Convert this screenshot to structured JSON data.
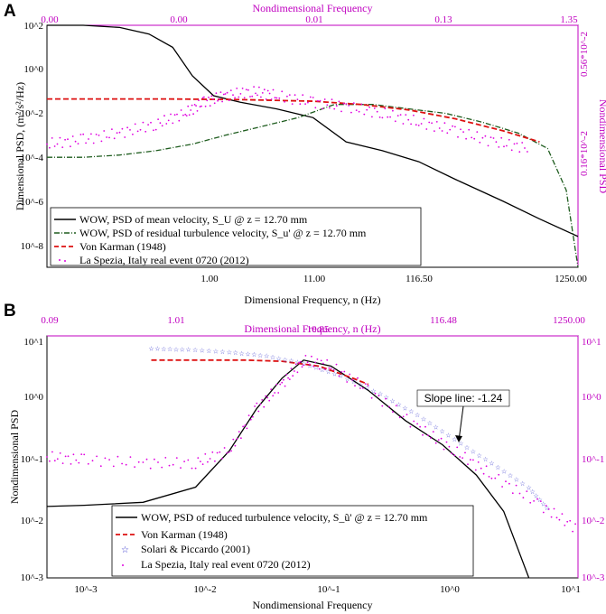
{
  "chart_data": [
    {
      "panel": "A",
      "type": "line",
      "xlabel": "Dimensional Frequency, n (Hz)",
      "ylabel": "Dimensional PSD, (m²/s²/Hz)",
      "top_label": "Nondimensional Frequency",
      "right_label": "Nondimensional PSD",
      "x_ticks": [
        "1.00",
        "11.00",
        "116.50",
        "1250.00"
      ],
      "top_ticks": [
        "0.00",
        "0.00",
        "0.01",
        "0.13",
        "1.35"
      ],
      "left_ticks": [
        "10^2",
        "10^0",
        "10^-2",
        "10^-4",
        "10^-6",
        "10^-8"
      ],
      "right_ticks": [
        "0.56*10^-2",
        "0.16*10^-2"
      ],
      "xlim": [
        0.05,
        1250
      ],
      "ylim_log10": [
        -9,
        2
      ],
      "legend": [
        "WOW, PSD of mean velocity, S_U @ z = 12.70 mm",
        "WOW, PSD of residual turbulence velocity, S_u' @ z = 12.70 mm",
        "Von Karman (1948)",
        "La Spezia, Italy real event 0720 (2012)"
      ],
      "series": [
        {
          "name": "WOW mean velocity PSD",
          "color": "#000000",
          "style": "solid",
          "x": [
            0.05,
            0.1,
            0.2,
            0.35,
            0.55,
            0.8,
            1.2,
            2,
            4,
            8,
            15,
            30,
            60,
            120,
            300,
            600,
            1250
          ],
          "y_log10": [
            2.0,
            2.0,
            1.9,
            1.6,
            1.0,
            -0.3,
            -1.2,
            -1.5,
            -1.8,
            -2.2,
            -3.3,
            -3.7,
            -4.2,
            -5.0,
            -6.0,
            -6.8,
            -7.6
          ]
        },
        {
          "name": "WOW residual turbulence PSD",
          "color": "#1e5c1e",
          "style": "dashdot",
          "x": [
            0.05,
            0.1,
            0.2,
            0.4,
            0.8,
            1.5,
            3,
            6,
            12,
            25,
            50,
            100,
            200,
            400,
            700,
            1000,
            1250
          ],
          "y_log10": [
            -4.0,
            -4.0,
            -3.9,
            -3.7,
            -3.4,
            -3.0,
            -2.6,
            -2.2,
            -1.6,
            -1.6,
            -1.8,
            -2.0,
            -2.4,
            -2.9,
            -3.6,
            -5.5,
            -9.0
          ]
        },
        {
          "name": "Von Karman (1948)",
          "color": "#dd1111",
          "style": "dashed",
          "x": [
            0.05,
            0.5,
            2,
            8,
            20,
            50,
            120,
            300,
            600
          ],
          "y_log10": [
            -1.35,
            -1.35,
            -1.38,
            -1.45,
            -1.6,
            -1.85,
            -2.25,
            -2.8,
            -3.3
          ]
        },
        {
          "name": "La Spezia real event",
          "color": "#e000e0",
          "style": "dots",
          "x": [
            0.05,
            0.1,
            0.2,
            0.4,
            0.7,
            1.0,
            1.5,
            2.5,
            4,
            8,
            15,
            30,
            60,
            120,
            250,
            500
          ],
          "y_log10": [
            -3.4,
            -3.2,
            -2.9,
            -2.5,
            -2.0,
            -1.5,
            -1.2,
            -1.0,
            -1.2,
            -1.5,
            -1.7,
            -2.0,
            -2.4,
            -2.8,
            -3.3,
            -3.6
          ]
        }
      ]
    },
    {
      "panel": "B",
      "type": "line",
      "xlabel": "Nondimensional Frequency",
      "ylabel": "Nondimensional PSD",
      "top_label": "Dimensional Frequency, n (Hz)",
      "x_ticks": [
        "10^-3",
        "10^-2",
        "10^-1",
        "10^0",
        "10^1"
      ],
      "top_ticks": [
        "0.09",
        "1.01",
        "10.85",
        "116.48",
        "1250.00"
      ],
      "left_ticks": [
        "10^1",
        "10^0",
        "10^-1",
        "10^-2",
        "10^-3"
      ],
      "right_ticks": [
        "10^1",
        "10^0",
        "10^-1",
        "10^-2",
        "10^-3"
      ],
      "xlim": [
        0.0005,
        10
      ],
      "ylim_log10": [
        -3,
        1
      ],
      "annotation": "Slope line: -1.24",
      "legend": [
        "WOW, PSD of reduced turbulence velocity, S_ũ' @ z = 12.70 mm",
        "Von Karman (1948)",
        "Solari & Piccardo (2001)",
        "La Spezia, Italy real event 0720 (2012)"
      ],
      "series": [
        {
          "name": "WOW reduced turbulence PSD",
          "color": "#000000",
          "style": "solid",
          "x": [
            0.0005,
            0.001,
            0.003,
            0.008,
            0.015,
            0.025,
            0.04,
            0.06,
            0.1,
            0.2,
            0.4,
            0.8,
            1.5,
            2.5,
            4
          ],
          "y_log10": [
            -1.82,
            -1.8,
            -1.75,
            -1.5,
            -0.9,
            -0.2,
            0.3,
            0.6,
            0.5,
            0.1,
            -0.4,
            -0.8,
            -1.3,
            -1.9,
            -3.0
          ]
        },
        {
          "name": "Von Karman (1948)",
          "color": "#dd1111",
          "style": "dashed",
          "x": [
            0.0035,
            0.006,
            0.01,
            0.02,
            0.04,
            0.08,
            0.15,
            0.2
          ],
          "y_log10": [
            0.6,
            0.6,
            0.6,
            0.6,
            0.58,
            0.5,
            0.3,
            0.2
          ]
        },
        {
          "name": "Solari & Piccardo (2001)",
          "color": "#3333cc",
          "style": "stars",
          "x": [
            0.0035,
            0.007,
            0.015,
            0.03,
            0.06,
            0.12,
            0.25,
            0.5,
            1,
            2,
            4,
            6
          ],
          "y_log10": [
            0.8,
            0.78,
            0.74,
            0.68,
            0.55,
            0.35,
            0.05,
            -0.3,
            -0.7,
            -1.1,
            -1.5,
            -1.9
          ]
        },
        {
          "name": "La Spezia real event",
          "color": "#e000e0",
          "style": "dots",
          "x": [
            0.0005,
            0.001,
            0.003,
            0.008,
            0.015,
            0.025,
            0.04,
            0.06,
            0.1,
            0.2,
            0.5,
            1,
            2,
            5,
            10
          ],
          "y_log10": [
            -1.0,
            -1.05,
            -1.1,
            -1.1,
            -0.9,
            -0.2,
            0.2,
            0.6,
            0.5,
            0.1,
            -0.5,
            -0.9,
            -1.3,
            -1.8,
            -2.2
          ]
        }
      ]
    }
  ]
}
